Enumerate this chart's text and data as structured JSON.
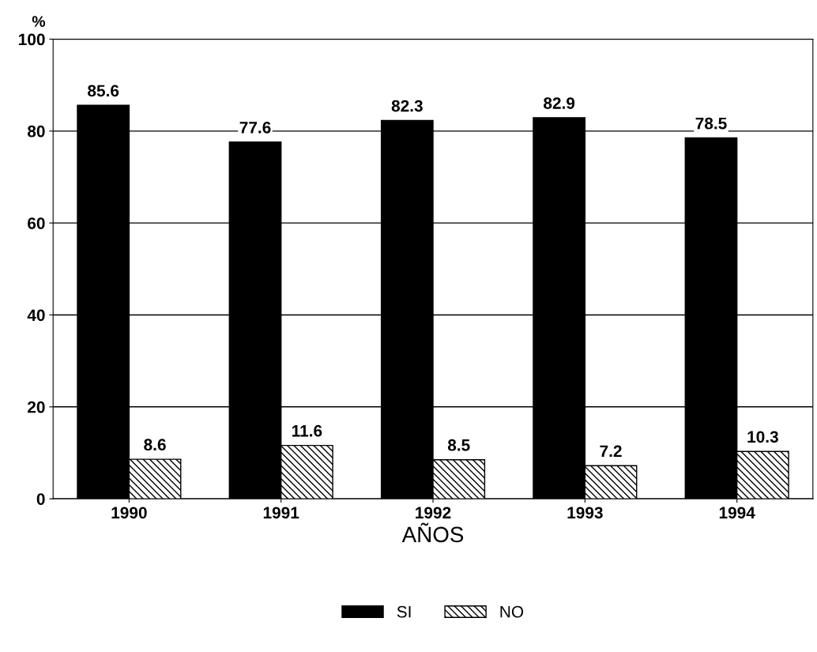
{
  "chart_data": {
    "type": "bar",
    "ylabel": "%",
    "xlabel": "AÑOS",
    "categories": [
      "1990",
      "1991",
      "1992",
      "1993",
      "1994"
    ],
    "series": [
      {
        "name": "SI",
        "color": "#000000",
        "values": [
          85.6,
          77.6,
          82.3,
          82.9,
          78.5
        ]
      },
      {
        "name": "NO",
        "color": "#000000",
        "values": [
          8.6,
          11.6,
          8.5,
          7.2,
          10.3
        ]
      }
    ],
    "ylim": [
      0,
      100
    ],
    "yticks": [
      0,
      20,
      40,
      60,
      80,
      100
    ],
    "grid": "y",
    "legend": "bottom",
    "data_labels": true
  }
}
